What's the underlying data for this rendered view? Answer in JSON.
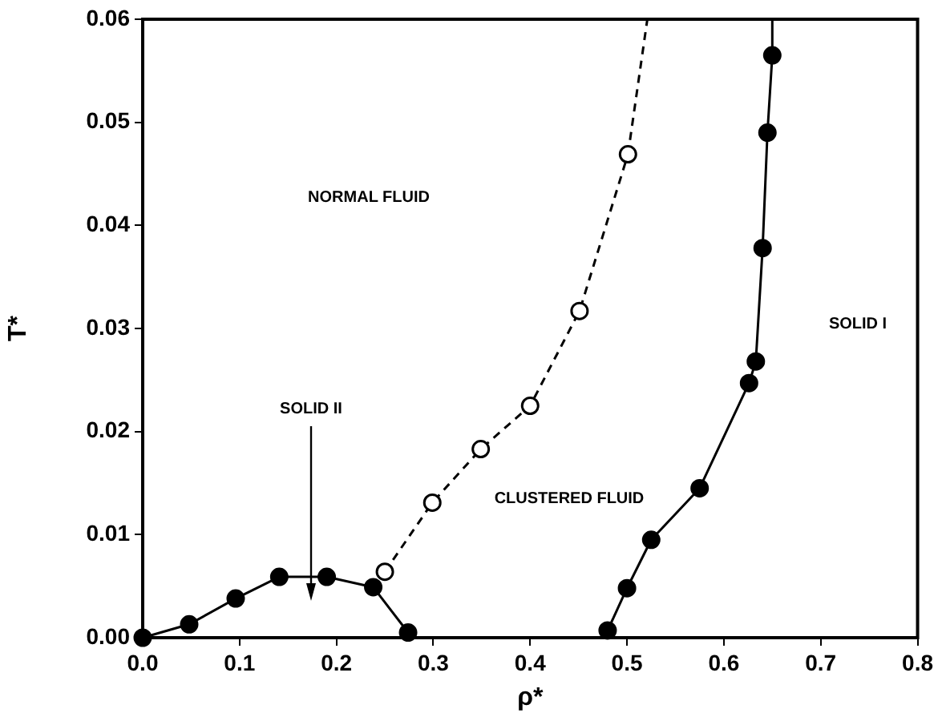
{
  "chart_data": {
    "type": "line",
    "xlabel": "ρ*",
    "ylabel": "T*",
    "xlim": [
      0,
      0.8
    ],
    "ylim": [
      0,
      0.06
    ],
    "xticks": [
      {
        "value": 0,
        "label": "0.0"
      },
      {
        "value": 0.1,
        "label": "0.1"
      },
      {
        "value": 0.2,
        "label": "0.2"
      },
      {
        "value": 0.3,
        "label": "0.3"
      },
      {
        "value": 0.4,
        "label": "0.4"
      },
      {
        "value": 0.5,
        "label": "0.5"
      },
      {
        "value": 0.6,
        "label": "0.6"
      },
      {
        "value": 0.7,
        "label": "0.7"
      },
      {
        "value": 0.8,
        "label": "0.8"
      }
    ],
    "yticks": [
      {
        "value": 0,
        "label": "0.00"
      },
      {
        "value": 0.01,
        "label": "0.01"
      },
      {
        "value": 0.02,
        "label": "0.02"
      },
      {
        "value": 0.03,
        "label": "0.03"
      },
      {
        "value": 0.04,
        "label": "0.04"
      },
      {
        "value": 0.05,
        "label": "0.05"
      },
      {
        "value": 0.06,
        "label": "0.06"
      }
    ],
    "grid": false,
    "legend": false,
    "series": [
      {
        "color": "#000000",
        "marker": "circle",
        "line_style": "solid",
        "x": [
          0,
          0.048,
          0.096,
          0.141,
          0.19,
          0.238,
          0.274
        ],
        "values": [
          0,
          0.0013,
          0.0038,
          0.0059,
          0.0059,
          0.0049,
          0.0005
        ]
      },
      {
        "color": "#000000",
        "marker": "circle",
        "line_style": "dashed",
        "x": [
          0.25,
          0.299,
          0.349,
          0.4,
          0.451,
          0.501
        ],
        "values": [
          0.0064,
          0.0131,
          0.0183,
          0.0225,
          0.0317,
          0.0469
        ]
      },
      {
        "color": "#000000",
        "marker": "none",
        "line_style": "dashed",
        "x": [
          0.501,
          0.521
        ],
        "values": [
          0.0469,
          0.06
        ]
      },
      {
        "color": "#000000",
        "marker": "circle",
        "line_style": "solid",
        "x": [
          0.48,
          0.5,
          0.525,
          0.575,
          0.626,
          0.633,
          0.64,
          0.645,
          0.65
        ],
        "values": [
          0.0007,
          0.0048,
          0.0095,
          0.0145,
          0.0247,
          0.0268,
          0.0378,
          0.049,
          0.0565
        ]
      },
      {
        "color": "#000000",
        "marker": "none",
        "line_style": "solid",
        "x": [
          0.65,
          0.65
        ],
        "values": [
          0.0565,
          0.06
        ]
      }
    ],
    "annotations": [
      "NORMAL FLUID",
      "CLUSTERED FLUID",
      "SOLID I",
      "SOLID II"
    ]
  }
}
